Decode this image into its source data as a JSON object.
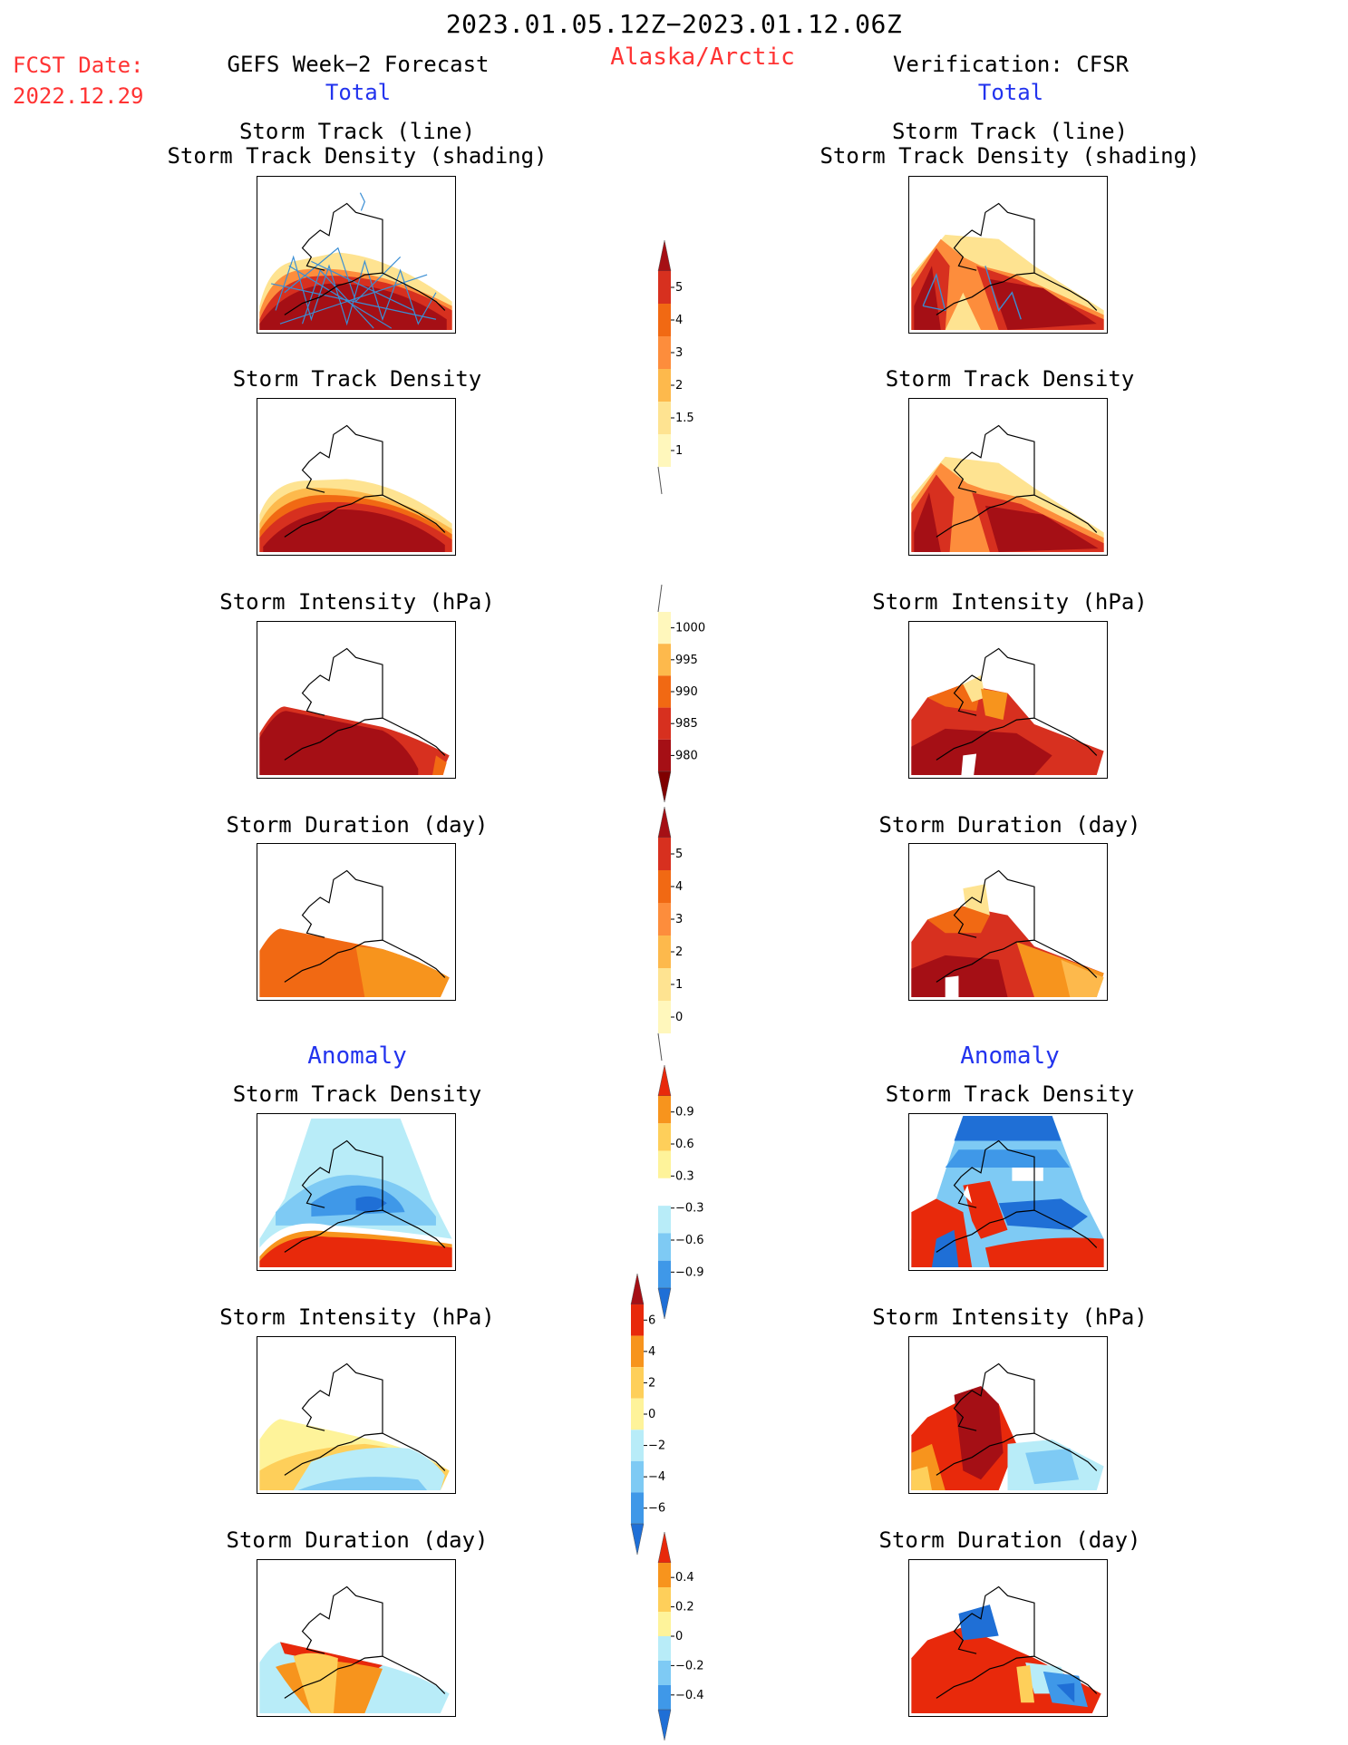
{
  "header": {
    "title": "2023.01.05.12Z−2023.01.12.06Z",
    "fcst_label": "FCST Date:",
    "fcst_date": "2022.12.29",
    "left_title": "GEFS Week−2 Forecast",
    "region": "Alaska/Arctic",
    "right_title": "Verification: CFSR",
    "total_label": "Total",
    "anomaly_label": "Anomaly"
  },
  "panel_titles": {
    "track_line": "Storm Track (line)",
    "track_shading": "Storm Track Density (shading)",
    "density": "Storm Track Density",
    "intensity": "Storm Intensity (hPa)",
    "duration": "Storm Duration (day)"
  },
  "colorbars": {
    "density": {
      "labels": [
        "5",
        "4",
        "3",
        "2",
        "1.5",
        "1"
      ],
      "colors": [
        "#a50f15",
        "#d7301f",
        "#f16913",
        "#fd8d3c",
        "#fdb94c",
        "#fee391",
        "#fff7bc"
      ]
    },
    "intensity": {
      "labels": [
        "1000",
        "995",
        "990",
        "985",
        "980"
      ],
      "colors": [
        "#fff7bc",
        "#fdb94c",
        "#f16913",
        "#d7301f",
        "#a50f15",
        "#7f0000"
      ]
    },
    "duration": {
      "labels": [
        "5",
        "4",
        "3",
        "2",
        "1",
        "0"
      ],
      "colors": [
        "#a50f15",
        "#d7301f",
        "#f16913",
        "#fd8d3c",
        "#fdb94c",
        "#fee391",
        "#fff7bc"
      ]
    },
    "density_anom": {
      "labels": [
        "0.9",
        "0.6",
        "0.3",
        "−0.3",
        "−0.6",
        "−0.9"
      ],
      "colors": [
        "#e8290b",
        "#f7941d",
        "#fecf5a",
        "#fef39a",
        "#ffffff",
        "#b8ecf8",
        "#7ecaf4",
        "#3f98e8",
        "#1f6fd6"
      ]
    },
    "intensity_anom": {
      "labels": [
        "6",
        "4",
        "2",
        "0",
        "−2",
        "−4",
        "−6"
      ],
      "colors": [
        "#a50f15",
        "#e8290b",
        "#f7941d",
        "#fecf5a",
        "#fef39a",
        "#b8ecf8",
        "#7ecaf4",
        "#3f98e8",
        "#1f6fd6"
      ]
    },
    "duration_anom": {
      "labels": [
        "0.4",
        "0.2",
        "0",
        "−0.2",
        "−0.4"
      ],
      "colors": [
        "#e8290b",
        "#f7941d",
        "#fecf5a",
        "#fef39a",
        "#b8ecf8",
        "#7ecaf4",
        "#3f98e8",
        "#1f6fd6"
      ]
    }
  },
  "colors": {
    "dark_red": "#a50f15",
    "red": "#d7301f",
    "orange": "#f16913",
    "light_orange": "#fdb94c",
    "yellow": "#fee391",
    "light_blue": "#b8ecf8",
    "mid_blue": "#3f98e8",
    "dark_blue": "#1f6fd6",
    "track_line": "#3a8ed4"
  }
}
